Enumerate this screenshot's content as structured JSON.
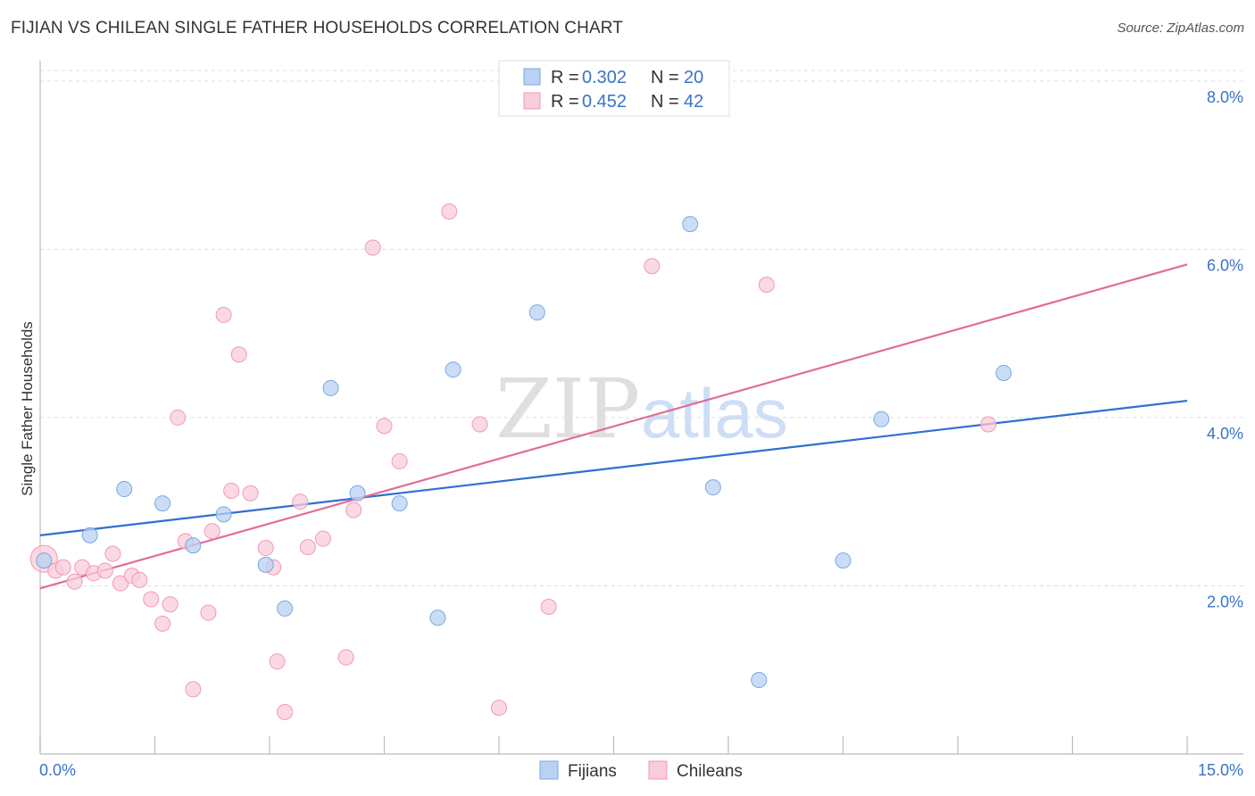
{
  "chart_data": {
    "type": "scatter",
    "title": "FIJIAN VS CHILEAN SINGLE FATHER HOUSEHOLDS CORRELATION CHART",
    "source": "Source: ZipAtlas.com",
    "xlabel": "",
    "ylabel": "Single Father Households",
    "xlim": [
      0,
      15
    ],
    "ylim": [
      0,
      8.2
    ],
    "x_tick_labels": [
      "0.0%",
      "15.0%"
    ],
    "y_ticks": [
      2,
      4,
      6,
      8
    ],
    "y_tick_labels": [
      "2.0%",
      "4.0%",
      "6.0%",
      "8.0%"
    ],
    "grid": true,
    "watermark": "ZIPatlas",
    "legend_position": "top-center",
    "legend": [
      {
        "r_label": "R = ",
        "r_value": "0.302",
        "n_label": "N = ",
        "n_value": "20"
      },
      {
        "r_label": "R = ",
        "r_value": "0.452",
        "n_label": "N = ",
        "n_value": "42"
      }
    ],
    "series": [
      {
        "name": "Fijians",
        "color": "#7aa7e0",
        "fill": "#b9d1f3",
        "line_color": "#2f6fcf",
        "trend": {
          "x0": 0.0,
          "y0": 2.6,
          "x1": 15.0,
          "y1": 4.2
        },
        "points": [
          {
            "x": 0.05,
            "y": 2.3
          },
          {
            "x": 0.65,
            "y": 2.6
          },
          {
            "x": 1.1,
            "y": 3.15
          },
          {
            "x": 1.6,
            "y": 2.98
          },
          {
            "x": 2.0,
            "y": 2.48
          },
          {
            "x": 2.4,
            "y": 2.85
          },
          {
            "x": 2.95,
            "y": 2.25
          },
          {
            "x": 3.2,
            "y": 1.73
          },
          {
            "x": 3.8,
            "y": 4.35
          },
          {
            "x": 4.15,
            "y": 3.1
          },
          {
            "x": 4.7,
            "y": 2.98
          },
          {
            "x": 5.2,
            "y": 1.62
          },
          {
            "x": 5.4,
            "y": 4.57
          },
          {
            "x": 6.5,
            "y": 5.25
          },
          {
            "x": 8.5,
            "y": 6.3
          },
          {
            "x": 8.8,
            "y": 3.17
          },
          {
            "x": 9.4,
            "y": 0.88
          },
          {
            "x": 10.5,
            "y": 2.3
          },
          {
            "x": 11.0,
            "y": 3.98
          },
          {
            "x": 12.6,
            "y": 4.53
          }
        ]
      },
      {
        "name": "Chileans",
        "color": "#f09ab5",
        "fill": "#f9ccd9",
        "line_color": "#e06d93",
        "trend": {
          "x0": 0.0,
          "y0": 1.97,
          "x1": 15.0,
          "y1": 5.82
        },
        "points": [
          {
            "x": 0.05,
            "y": 2.32,
            "big": true
          },
          {
            "x": 0.2,
            "y": 2.18
          },
          {
            "x": 0.3,
            "y": 2.22
          },
          {
            "x": 0.45,
            "y": 2.05
          },
          {
            "x": 0.55,
            "y": 2.22
          },
          {
            "x": 0.7,
            "y": 2.15
          },
          {
            "x": 0.85,
            "y": 2.18
          },
          {
            "x": 0.95,
            "y": 2.38
          },
          {
            "x": 1.05,
            "y": 2.03
          },
          {
            "x": 1.2,
            "y": 2.12
          },
          {
            "x": 1.3,
            "y": 2.07
          },
          {
            "x": 1.45,
            "y": 1.84
          },
          {
            "x": 1.6,
            "y": 1.55
          },
          {
            "x": 1.7,
            "y": 1.78
          },
          {
            "x": 1.8,
            "y": 4.0
          },
          {
            "x": 1.9,
            "y": 2.53
          },
          {
            "x": 2.0,
            "y": 0.77
          },
          {
            "x": 2.2,
            "y": 1.68
          },
          {
            "x": 2.25,
            "y": 2.65
          },
          {
            "x": 2.4,
            "y": 5.22
          },
          {
            "x": 2.5,
            "y": 3.13
          },
          {
            "x": 2.6,
            "y": 4.75
          },
          {
            "x": 2.75,
            "y": 3.1
          },
          {
            "x": 2.95,
            "y": 2.45
          },
          {
            "x": 3.05,
            "y": 2.22
          },
          {
            "x": 3.1,
            "y": 1.1
          },
          {
            "x": 3.2,
            "y": 0.5
          },
          {
            "x": 3.4,
            "y": 3.0
          },
          {
            "x": 3.5,
            "y": 2.46
          },
          {
            "x": 3.7,
            "y": 2.56
          },
          {
            "x": 4.0,
            "y": 1.15
          },
          {
            "x": 4.1,
            "y": 2.9
          },
          {
            "x": 4.35,
            "y": 6.02
          },
          {
            "x": 4.5,
            "y": 3.9
          },
          {
            "x": 4.7,
            "y": 3.48
          },
          {
            "x": 5.35,
            "y": 6.45
          },
          {
            "x": 5.75,
            "y": 3.92
          },
          {
            "x": 6.0,
            "y": 0.55
          },
          {
            "x": 6.65,
            "y": 1.75
          },
          {
            "x": 8.0,
            "y": 5.8
          },
          {
            "x": 9.5,
            "y": 5.58
          },
          {
            "x": 12.4,
            "y": 3.92
          }
        ]
      }
    ]
  }
}
